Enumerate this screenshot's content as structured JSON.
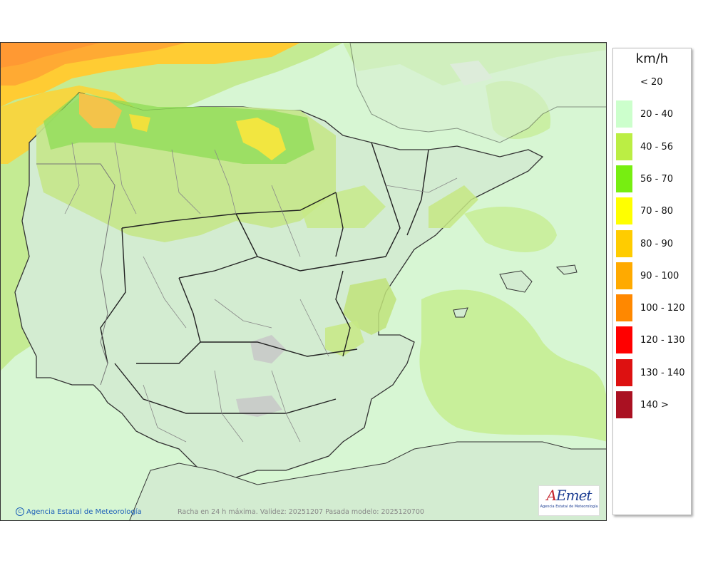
{
  "legend": {
    "unit": "km/h",
    "items": [
      {
        "label": "< 20",
        "color": "#ffffff"
      },
      {
        "label": "20 - 40",
        "color": "#ccffcc"
      },
      {
        "label": "40 - 56",
        "color": "#bbee44"
      },
      {
        "label": "56 - 70",
        "color": "#77ee11"
      },
      {
        "label": "70 - 80",
        "color": "#ffff00"
      },
      {
        "label": "80 - 90",
        "color": "#ffcc00"
      },
      {
        "label": "90 - 100",
        "color": "#ffaa00"
      },
      {
        "label": "100 - 120",
        "color": "#ff8800"
      },
      {
        "label": "120 - 130",
        "color": "#ff0000"
      },
      {
        "label": "130 - 140",
        "color": "#dd1111"
      },
      {
        "label": "140 >",
        "color": "#aa1122"
      }
    ]
  },
  "credit": "Agencia Estatal de Meteorología",
  "footer": "Racha en 24 h máxima. Validez: 20251207 Pasada modelo: 2025120700",
  "logo": {
    "word_a": "A",
    "word_rest": "Emet",
    "subtitle": "Agencia Estatal de Meteorología"
  },
  "colors": {
    "sea_background": "#d9f5d6",
    "land": "#d3ecd1",
    "border": "#333333"
  }
}
